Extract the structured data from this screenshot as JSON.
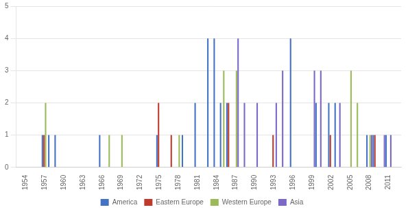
{
  "chart_data": {
    "type": "bar",
    "x": [
      1957,
      1958,
      1959,
      1966,
      1967,
      1969,
      1975,
      1977,
      1978,
      1979,
      1981,
      1983,
      1984,
      1985,
      1986,
      1987,
      1988,
      1990,
      1993,
      1994,
      1996,
      1999,
      2000,
      2002,
      2003,
      2005,
      2006,
      2008,
      2009,
      2010,
      2011
    ],
    "series": [
      {
        "name": "America",
        "color": "#4472C4",
        "values": [
          1,
          1,
          1,
          1,
          null,
          null,
          1,
          null,
          null,
          1,
          2,
          4,
          4,
          2,
          2,
          null,
          null,
          null,
          null,
          null,
          4,
          null,
          2,
          2,
          2,
          null,
          null,
          1,
          1,
          null,
          1
        ]
      },
      {
        "name": "Eastern Europe",
        "color": "#C0392B",
        "values": [
          1,
          null,
          null,
          null,
          null,
          null,
          2,
          1,
          null,
          null,
          null,
          null,
          null,
          null,
          2,
          null,
          null,
          null,
          1,
          null,
          null,
          null,
          null,
          1,
          null,
          null,
          null,
          null,
          1,
          null,
          null
        ]
      },
      {
        "name": "Western Europe",
        "color": "#9BBB59",
        "values": [
          2,
          null,
          null,
          null,
          1,
          1,
          null,
          null,
          1,
          null,
          null,
          null,
          null,
          3,
          null,
          3,
          null,
          null,
          null,
          null,
          null,
          null,
          null,
          null,
          null,
          3,
          2,
          1,
          null,
          null,
          null
        ]
      },
      {
        "name": "Asia",
        "color": "#7B68C8",
        "values": [
          null,
          null,
          null,
          null,
          null,
          null,
          null,
          null,
          null,
          null,
          null,
          null,
          null,
          null,
          null,
          4,
          2,
          2,
          2,
          3,
          null,
          3,
          3,
          null,
          2,
          null,
          null,
          1,
          null,
          1,
          1
        ]
      }
    ],
    "xlim": [
      1952.5,
      2013.0
    ],
    "xticks": [
      1954,
      1957,
      1960,
      1963,
      1966,
      1969,
      1972,
      1975,
      1978,
      1981,
      1984,
      1987,
      1990,
      1993,
      1996,
      1999,
      2002,
      2005,
      2008,
      2011
    ],
    "ylim": [
      0,
      5
    ],
    "yticks": [
      0,
      1,
      2,
      3,
      4,
      5
    ],
    "grid": true,
    "legend": "bottom"
  }
}
